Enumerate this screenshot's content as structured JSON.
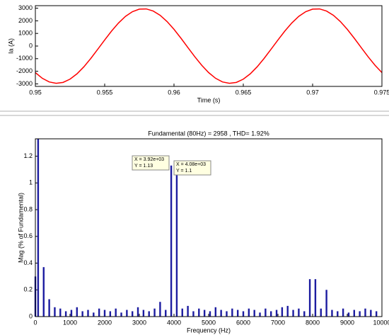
{
  "chart_data": [
    {
      "type": "line",
      "x_label": "Time (s)",
      "y_label": "Ia (A)",
      "color": "#ff0000",
      "x": [
        0.95,
        0.9505,
        0.951,
        0.9515,
        0.952,
        0.9525,
        0.953,
        0.9535,
        0.954,
        0.9545,
        0.955,
        0.9555,
        0.956,
        0.9565,
        0.957,
        0.9575,
        0.958,
        0.9585,
        0.959,
        0.9595,
        0.96,
        0.9605,
        0.961,
        0.9615,
        0.962,
        0.9625,
        0.963,
        0.9635,
        0.964,
        0.9645,
        0.965,
        0.9655,
        0.966,
        0.9665,
        0.967,
        0.9675,
        0.968,
        0.9685,
        0.969,
        0.9695,
        0.97,
        0.9705,
        0.971,
        0.9715,
        0.972,
        0.9725,
        0.973,
        0.9735,
        0.974,
        0.9745,
        0.975
      ],
      "values": [
        -2106,
        -2557,
        -2846,
        -2957,
        -2882,
        -2626,
        -2205,
        -1646,
        -983,
        -258,
        483,
        1194,
        1829,
        2350,
        2723,
        2925,
        2943,
        2776,
        2435,
        1941,
        1325,
        625,
        -114,
        -845,
        -1523,
        -2106,
        -2557,
        -2846,
        -2957,
        -2882,
        -2626,
        -2205,
        -1646,
        -983,
        -258,
        483,
        1194,
        1829,
        2350,
        2723,
        2925,
        2943,
        2776,
        2435,
        1941,
        1325,
        625,
        -114,
        -845,
        -1523,
        -2106
      ],
      "xlim": [
        0.95,
        0.975
      ],
      "xticks": [
        0.95,
        0.955,
        0.96,
        0.965,
        0.97,
        0.975
      ],
      "ylim": [
        -3200,
        3200
      ],
      "yticks": [
        -3000,
        -2000,
        -1000,
        0,
        1000,
        2000,
        3000
      ]
    },
    {
      "type": "bar",
      "title": "Fundamental (80Hz) = 2958 , THD= 1.92%",
      "x_label": "Frequency (Hz)",
      "y_label": "Mag (% of Fundamental)",
      "color": "#1c1ca0",
      "x": [
        0,
        80,
        240,
        400,
        560,
        720,
        880,
        1040,
        1200,
        1360,
        1520,
        1680,
        1840,
        2000,
        2160,
        2320,
        2480,
        2640,
        2800,
        2960,
        3120,
        3280,
        3440,
        3600,
        3760,
        3920,
        4080,
        4240,
        4400,
        4560,
        4720,
        4880,
        5040,
        5200,
        5360,
        5520,
        5680,
        5840,
        6000,
        6160,
        6320,
        6480,
        6640,
        6800,
        6960,
        7120,
        7280,
        7440,
        7600,
        7760,
        7920,
        8080,
        8240,
        8400,
        8560,
        8720,
        8880,
        9040,
        9200,
        9360,
        9520,
        9680,
        9840
      ],
      "values": [
        0.3,
        1.33,
        0.37,
        0.13,
        0.07,
        0.06,
        0.04,
        0.05,
        0.07,
        0.04,
        0.05,
        0.03,
        0.06,
        0.05,
        0.04,
        0.06,
        0.03,
        0.05,
        0.04,
        0.07,
        0.05,
        0.04,
        0.06,
        0.11,
        0.05,
        1.13,
        1.1,
        0.06,
        0.08,
        0.04,
        0.06,
        0.05,
        0.04,
        0.07,
        0.05,
        0.04,
        0.06,
        0.05,
        0.04,
        0.06,
        0.05,
        0.03,
        0.06,
        0.04,
        0.05,
        0.07,
        0.08,
        0.05,
        0.06,
        0.04,
        0.28,
        0.28,
        0.06,
        0.2,
        0.05,
        0.04,
        0.06,
        0.03,
        0.05,
        0.04,
        0.06,
        0.05,
        0.04
      ],
      "xlim": [
        0,
        10000
      ],
      "xticks": [
        0,
        1000,
        2000,
        3000,
        4000,
        5000,
        6000,
        7000,
        8000,
        9000,
        10000
      ],
      "ylim": [
        0,
        1.33
      ],
      "yticks": [
        0,
        0.2,
        0.4,
        0.6,
        0.8,
        1,
        1.2
      ],
      "annotations": [
        [
          "X = 3.92e+03",
          "Y = 1.13"
        ],
        [
          "X = 4.08e+03",
          "Y = 1.1"
        ]
      ]
    }
  ]
}
